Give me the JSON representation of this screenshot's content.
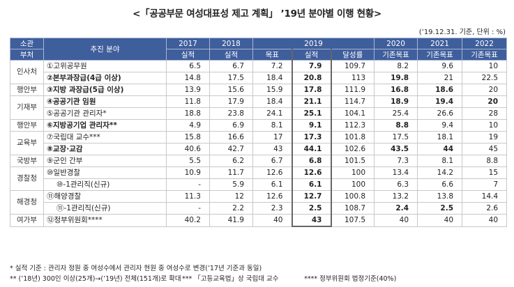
{
  "title": "<「공공부문 여성대표성 제고 계획」 ’19년 분야별 이행 현황>",
  "unit": "(’19.12.31. 기준, 단위 : %)",
  "headers": {
    "dept_top": "소관",
    "dept_bottom": "부처",
    "item": "추진 분야",
    "y2017_top": "2017",
    "y2017_bottom": "실적",
    "y2018_top": "2018",
    "y2018_bottom": "실적",
    "y2019": "2019",
    "target": "목표",
    "actual": "실적",
    "rate": "달성률",
    "y2020_top": "2020",
    "y2020_bottom": "기존목표",
    "y2021_top": "2021",
    "y2021_bottom": "기존목표",
    "y2022_top": "2022",
    "y2022_bottom": "기존목표"
  },
  "depts": [
    "인사처",
    "행안부",
    "기재부",
    "행안부",
    "교육부",
    "국방부",
    "경찰청",
    "해경청",
    "여가부"
  ],
  "rows": [
    {
      "item": "①고위공무원",
      "v2017": "6.5",
      "v2018": "6.7",
      "target": "7.2",
      "actual": "7.9",
      "rate": "109.7",
      "v2020": "8.2",
      "v2021": "9.6",
      "v2022": "10"
    },
    {
      "item": "②본부과장급(4급 이상)",
      "v2017": "14.8",
      "v2018": "17.5",
      "target": "18.4",
      "actual": "20.8",
      "rate": "113",
      "v2020": "19.8",
      "v2021": "21",
      "v2022": "22.5"
    },
    {
      "item": "③지방 과장급(5급 이상)",
      "v2017": "13.9",
      "v2018": "15.6",
      "target": "15.9",
      "actual": "17.8",
      "rate": "111.9",
      "v2020": "16.8",
      "v2021": "18.6",
      "v2022": "20"
    },
    {
      "item": "④공공기관 임원",
      "v2017": "11.8",
      "v2018": "17.9",
      "target": "18.4",
      "actual": "21.1",
      "rate": "114.7",
      "v2020": "18.9",
      "v2021": "19.4",
      "v2022": "20"
    },
    {
      "item": "⑤공공기관 관리자*",
      "v2017": "18.8",
      "v2018": "23.8",
      "target": "24.1",
      "actual": "25.1",
      "rate": "104.1",
      "v2020": "25.4",
      "v2021": "26.6",
      "v2022": "28"
    },
    {
      "item": "⑥지방공기업 관리자**",
      "v2017": "4.9",
      "v2018": "6.9",
      "target": "8.1",
      "actual": "9.1",
      "rate": "112.3",
      "v2020": "8.8",
      "v2021": "9.4",
      "v2022": "10"
    },
    {
      "item": "⑦국립대 교수***",
      "v2017": "15.8",
      "v2018": "16.6",
      "target": "17",
      "actual": "17.3",
      "rate": "101.8",
      "v2020": "17.5",
      "v2021": "18.1",
      "v2022": "19"
    },
    {
      "item": "⑧교장·교감",
      "v2017": "40.6",
      "v2018": "42.7",
      "target": "43",
      "actual": "44.1",
      "rate": "102.6",
      "v2020": "43.5",
      "v2021": "44",
      "v2022": "45"
    },
    {
      "item": "⑨군인 간부",
      "v2017": "5.5",
      "v2018": "6.2",
      "target": "6.7",
      "actual": "6.8",
      "rate": "101.5",
      "v2020": "7.3",
      "v2021": "8.1",
      "v2022": "8.8"
    },
    {
      "item": "⑩일반경찰",
      "v2017": "10.9",
      "v2018": "11.7",
      "target": "12.6",
      "actual": "12.6",
      "rate": "100",
      "v2020": "13.4",
      "v2021": "14.2",
      "v2022": "15"
    },
    {
      "item": "⑩-1관리직(신규)",
      "v2017": "-",
      "v2018": "5.9",
      "target": "6.1",
      "actual": "6.1",
      "rate": "100",
      "v2020": "6.3",
      "v2021": "6.6",
      "v2022": "7"
    },
    {
      "item": "⑪해양경찰",
      "v2017": "11.3",
      "v2018": "12",
      "target": "12.6",
      "actual": "12.7",
      "rate": "100.8",
      "v2020": "13.2",
      "v2021": "13.8",
      "v2022": "14.4"
    },
    {
      "item": "⑪-1관리직(신규)",
      "v2017": "-",
      "v2018": "2.2",
      "target": "2.3",
      "actual": "2.5",
      "rate": "108.7",
      "v2020": "2.4",
      "v2021": "2.5",
      "v2022": "2.6"
    },
    {
      "item": "⑫정부위원회****",
      "v2017": "40.2",
      "v2018": "41.9",
      "target": "40",
      "actual": "43",
      "rate": "107.5",
      "v2020": "40",
      "v2021": "40",
      "v2022": "40"
    }
  ],
  "footnotes": {
    "line1": "* 실적 기준 : 관리자 정원 중 여성수에서 관리자 현원 중 여성수로 변경(’17년 기준과 동일)",
    "line2a": "** (’18년) 300인 이상(25개)→(’19년) 전체(151개)로 확대",
    "line2b": "*** 「고등교육법」상 국립대 교수",
    "line2c": "**** 정부위원회 법정기준(40%)"
  }
}
